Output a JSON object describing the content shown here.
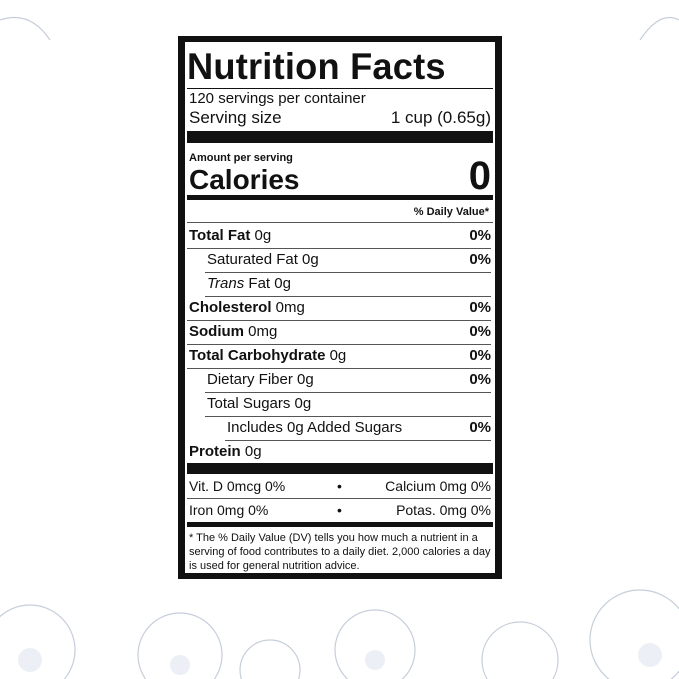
{
  "label": {
    "title": "Nutrition Facts",
    "servings_per_container": "120 servings per container",
    "serving_size_label": "Serving size",
    "serving_size_value": "1 cup (0.65g)",
    "amount_per_serving": "Amount per serving",
    "calories_label": "Calories",
    "calories_value": "0",
    "daily_value_header": "% Daily Value*",
    "nutrients": [
      {
        "name": "Total Fat",
        "amount": " 0g",
        "dv": "0%"
      },
      {
        "name": "Saturated Fat 0g",
        "amount": "",
        "dv": "0%"
      },
      {
        "name": "Trans",
        "amount": " Fat 0g",
        "dv": ""
      },
      {
        "name": "Cholesterol",
        "amount": " 0mg",
        "dv": "0%"
      },
      {
        "name": "Sodium",
        "amount": " 0mg",
        "dv": "0%"
      },
      {
        "name": "Total Carbohydrate",
        "amount": " 0g",
        "dv": "0%"
      },
      {
        "name": "Dietary Fiber 0g",
        "amount": "",
        "dv": "0%"
      },
      {
        "name": "Total Sugars 0g",
        "amount": "",
        "dv": ""
      },
      {
        "name": "Includes 0g Added Sugars",
        "amount": "",
        "dv": "0%"
      },
      {
        "name": "Protein",
        "amount": " 0g",
        "dv": ""
      }
    ],
    "vitamins": [
      {
        "left": "Vit. D 0mcg 0%",
        "sep": "•",
        "right": "Calcium 0mg 0%"
      },
      {
        "left": "Iron 0mg 0%",
        "sep": "•",
        "right": "Potas. 0mg 0%"
      }
    ],
    "footnote": "* The % Daily Value (DV) tells you how much a nutrient in a serving of food contributes to a daily diet. 2,000 calories a day is used for general nutrition advice."
  }
}
